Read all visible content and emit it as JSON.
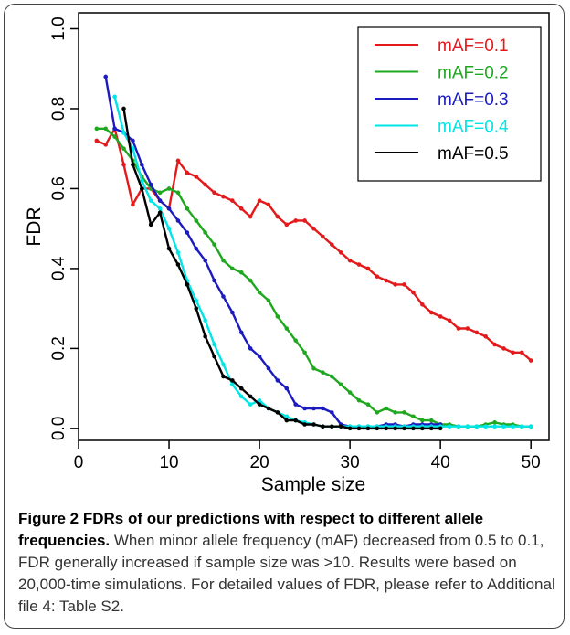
{
  "chart_data": {
    "type": "line",
    "xlabel": "Sample size",
    "ylabel": "FDR",
    "xlim": [
      0,
      52
    ],
    "ylim": [
      -0.03,
      1.04
    ],
    "xticks": [
      0,
      10,
      20,
      30,
      40,
      50
    ],
    "yticks": [
      0.0,
      0.2,
      0.4,
      0.6,
      0.8,
      1.0
    ],
    "ytick_labels": [
      "0.0",
      "0.2",
      "0.4",
      "0.6",
      "0.8",
      "1.0"
    ],
    "grid": false,
    "legend_position": "top-right",
    "series": [
      {
        "name": "mAF=0.1",
        "color": "#e31a1c",
        "x": [
          2,
          3,
          4,
          5,
          6,
          7,
          8,
          9,
          10,
          11,
          12,
          13,
          14,
          15,
          16,
          17,
          18,
          19,
          20,
          21,
          22,
          23,
          24,
          25,
          26,
          27,
          28,
          29,
          30,
          31,
          32,
          33,
          34,
          35,
          36,
          37,
          38,
          39,
          40,
          41,
          42,
          43,
          44,
          45,
          46,
          47,
          48,
          49,
          50
        ],
        "y": [
          0.72,
          0.71,
          0.75,
          0.66,
          0.56,
          0.6,
          0.6,
          0.57,
          0.55,
          0.67,
          0.64,
          0.63,
          0.61,
          0.59,
          0.58,
          0.57,
          0.55,
          0.53,
          0.57,
          0.56,
          0.53,
          0.51,
          0.52,
          0.52,
          0.5,
          0.48,
          0.46,
          0.44,
          0.42,
          0.41,
          0.4,
          0.38,
          0.37,
          0.36,
          0.36,
          0.34,
          0.31,
          0.29,
          0.28,
          0.27,
          0.25,
          0.25,
          0.24,
          0.23,
          0.21,
          0.2,
          0.19,
          0.19,
          0.17
        ]
      },
      {
        "name": "mAF=0.2",
        "color": "#1fa81f",
        "x": [
          2,
          3,
          4,
          5,
          6,
          7,
          8,
          9,
          10,
          11,
          12,
          13,
          14,
          15,
          16,
          17,
          18,
          19,
          20,
          21,
          22,
          23,
          24,
          25,
          26,
          27,
          28,
          29,
          30,
          31,
          32,
          33,
          34,
          35,
          36,
          37,
          38,
          39,
          40,
          41,
          42,
          43,
          44,
          45,
          46,
          47,
          48,
          49,
          50
        ],
        "y": [
          0.75,
          0.75,
          0.73,
          0.7,
          0.67,
          0.63,
          0.6,
          0.59,
          0.6,
          0.59,
          0.55,
          0.52,
          0.49,
          0.46,
          0.42,
          0.4,
          0.39,
          0.37,
          0.34,
          0.32,
          0.28,
          0.25,
          0.22,
          0.19,
          0.15,
          0.14,
          0.13,
          0.11,
          0.09,
          0.07,
          0.06,
          0.04,
          0.05,
          0.04,
          0.04,
          0.03,
          0.02,
          0.02,
          0.01,
          0.01,
          0.005,
          0.005,
          0.005,
          0.01,
          0.015,
          0.01,
          0.01,
          0.005,
          0.005
        ]
      },
      {
        "name": "mAF=0.3",
        "color": "#1b1bc0",
        "x": [
          3,
          4,
          5,
          6,
          7,
          8,
          9,
          10,
          11,
          12,
          13,
          14,
          15,
          16,
          17,
          18,
          19,
          20,
          21,
          22,
          23,
          24,
          25,
          26,
          27,
          28,
          29,
          30,
          31,
          32,
          33,
          34,
          35,
          36,
          37,
          38,
          39,
          40
        ],
        "y": [
          0.88,
          0.75,
          0.74,
          0.72,
          0.66,
          0.61,
          0.57,
          0.55,
          0.52,
          0.49,
          0.45,
          0.42,
          0.37,
          0.33,
          0.29,
          0.24,
          0.2,
          0.18,
          0.15,
          0.12,
          0.1,
          0.06,
          0.05,
          0.05,
          0.05,
          0.04,
          0.01,
          0.005,
          0.005,
          0.005,
          0.005,
          0.01,
          0.01,
          0.005,
          0.01,
          0.01,
          0.01,
          0.01
        ]
      },
      {
        "name": "mAF=0.4",
        "color": "#00e5e5",
        "x": [
          4,
          5,
          6,
          7,
          8,
          9,
          10,
          11,
          12,
          13,
          14,
          15,
          16,
          17,
          18,
          19,
          20,
          21,
          22,
          23,
          24,
          25,
          26,
          27,
          28,
          29,
          30,
          31,
          32,
          33,
          34,
          35,
          36,
          37,
          38,
          39,
          40,
          41,
          42,
          43,
          44,
          45,
          46,
          47,
          48,
          49,
          50
        ],
        "y": [
          0.83,
          0.74,
          0.7,
          0.62,
          0.57,
          0.55,
          0.5,
          0.44,
          0.37,
          0.32,
          0.27,
          0.21,
          0.16,
          0.11,
          0.08,
          0.06,
          0.07,
          0.05,
          0.04,
          0.03,
          0.02,
          0.015,
          0.01,
          0.005,
          0.005,
          0.005,
          0.005,
          0.005,
          0.005,
          0.005,
          0.005,
          0.005,
          0.005,
          0.005,
          0.005,
          0.005,
          0.005,
          0.005,
          0.005,
          0.005,
          0.005,
          0.005,
          0.005,
          0.005,
          0.005,
          0.005,
          0.005
        ]
      },
      {
        "name": "mAF=0.5",
        "color": "#000000",
        "x": [
          5,
          6,
          7,
          8,
          9,
          10,
          11,
          12,
          13,
          14,
          15,
          16,
          17,
          18,
          19,
          20,
          21,
          22,
          23,
          24,
          25,
          26,
          27,
          28,
          29,
          30,
          31,
          32,
          33,
          34,
          35,
          36,
          37,
          38,
          39,
          40
        ],
        "y": [
          0.8,
          0.66,
          0.6,
          0.51,
          0.54,
          0.45,
          0.41,
          0.36,
          0.3,
          0.23,
          0.18,
          0.13,
          0.12,
          0.1,
          0.08,
          0.06,
          0.05,
          0.04,
          0.02,
          0.02,
          0.01,
          0.01,
          0.005,
          0.005,
          0.005,
          0.0,
          0.0,
          0.0,
          0.0,
          0.0,
          0.0,
          0.0,
          0.0,
          0.0,
          0.0,
          0.0
        ]
      }
    ]
  },
  "caption": {
    "lead": "Figure 2 FDRs of our predictions with respect to different allele frequencies.",
    "body": " When minor allele frequency (mAF) decreased from 0.5 to 0.1, FDR generally increased if sample size was >10. Results were based on 20,000-time simulations. For detailed values of FDR, please refer to Additional file 4: Table S2."
  }
}
